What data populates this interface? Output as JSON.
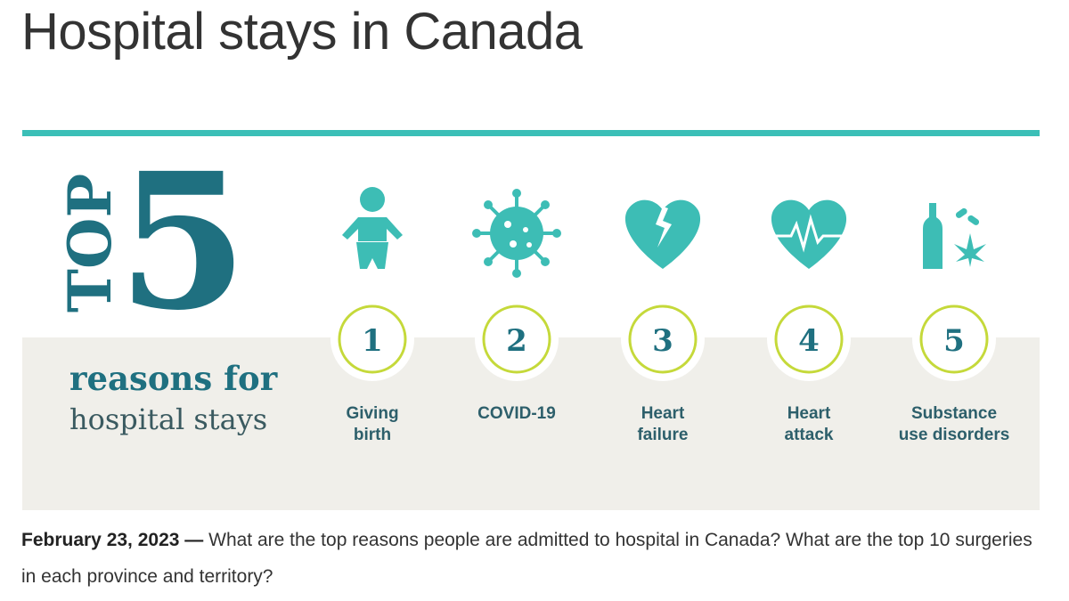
{
  "header": {
    "title": "Hospital stays in Canada"
  },
  "infographic": {
    "top_word": "TOP",
    "top_number": "5",
    "subtitle": [
      "reasons for",
      "hospital stays"
    ],
    "items": [
      {
        "rank": 1,
        "label": [
          "Giving",
          "birth"
        ]
      },
      {
        "rank": 2,
        "label": [
          "COVID-19"
        ]
      },
      {
        "rank": 3,
        "label": [
          "Heart",
          "failure"
        ]
      },
      {
        "rank": 4,
        "label": [
          "Heart",
          "attack"
        ]
      },
      {
        "rank": 5,
        "label": [
          "Substance",
          "use disorders"
        ]
      }
    ]
  },
  "article": {
    "date": "February 23, 2023 —",
    "text": "What are the top reasons people are admitted to hospital in Canada? What are the top 10 surgeries in each province and territory?"
  }
}
